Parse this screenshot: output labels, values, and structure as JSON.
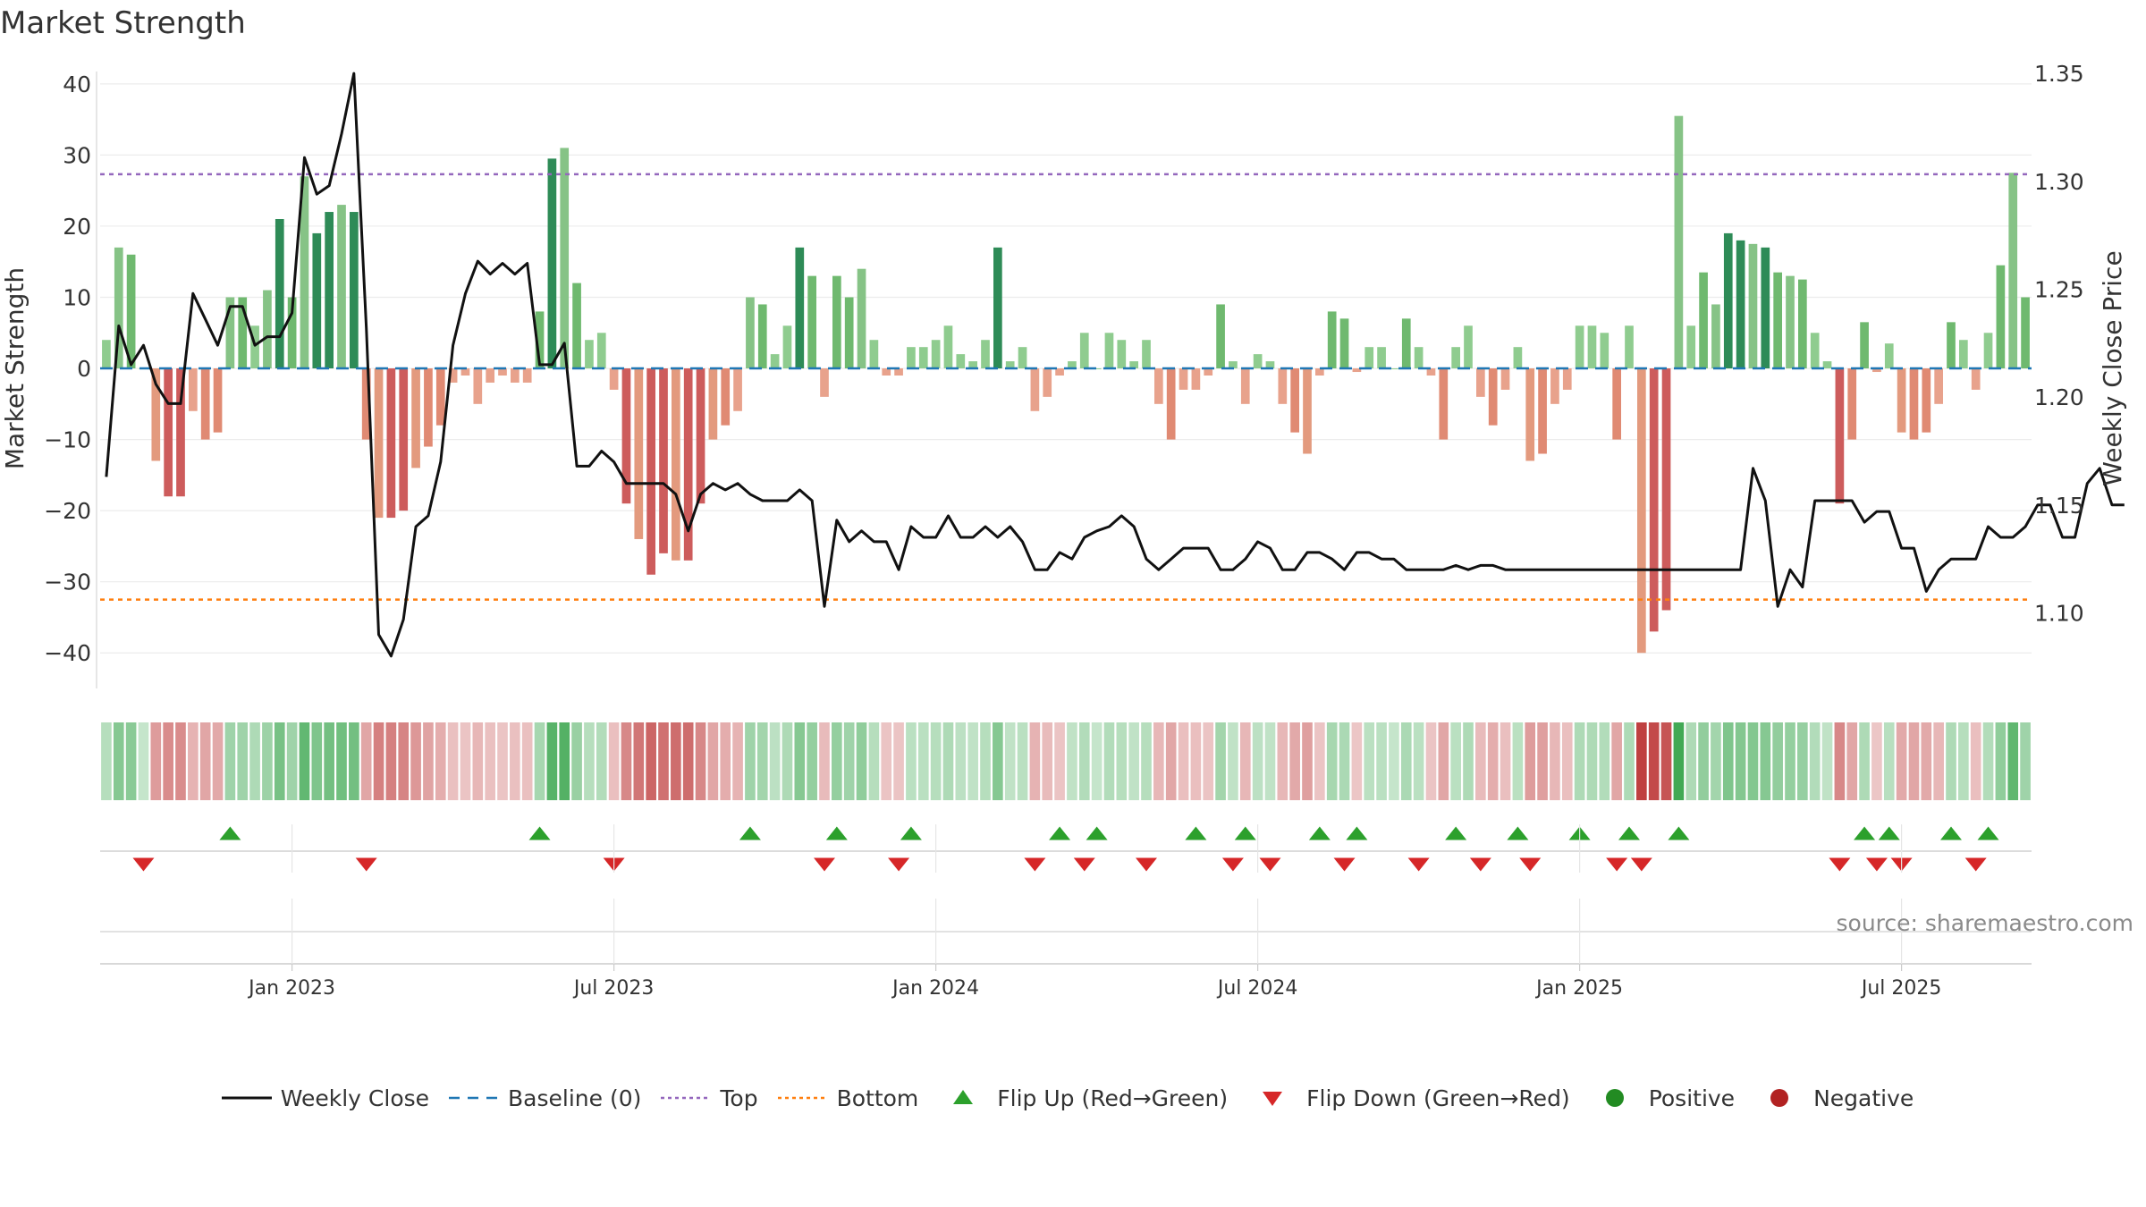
{
  "chart_data": {
    "type": "bar",
    "title": "Market Strength",
    "ylabel": "Market Strength",
    "y2label": "Weekly Close Price",
    "ylim": [
      -45,
      43
    ],
    "y2lim": [
      1.065,
      1.355
    ],
    "yticks": [
      40,
      30,
      20,
      10,
      0,
      -10,
      -20,
      -30,
      -40
    ],
    "y2ticks": [
      "1.35",
      "1.30",
      "1.25",
      "1.20",
      "1.15",
      "1.10"
    ],
    "xticks": [
      "Jan 2023",
      "Jul 2023",
      "Jan 2024",
      "Jul 2024",
      "Jan 2025",
      "Jul 2025"
    ],
    "xtick_weeks": [
      15,
      41,
      67,
      93,
      119,
      145
    ],
    "reference_lines": {
      "top": 27.3,
      "bottom": -32.5,
      "baseline": 0
    },
    "strength": [
      4,
      17,
      16,
      0,
      -13,
      -18,
      -18,
      -6,
      -10,
      -9,
      10,
      10,
      6,
      11,
      21,
      10,
      27,
      19,
      22,
      23,
      22,
      -10,
      -21,
      -21,
      -20,
      -14,
      -11,
      -8,
      -2,
      -1,
      -5,
      -2,
      -1,
      -2,
      -2,
      8,
      29.5,
      31,
      12,
      4,
      5,
      -3,
      -19,
      -24,
      -29,
      -26,
      -27,
      -27,
      -19,
      -10,
      -8,
      -6,
      10,
      9,
      2,
      6,
      17,
      13,
      -4,
      13,
      10,
      14,
      4,
      -1,
      -1,
      3,
      3,
      4,
      6,
      2,
      1,
      4,
      17,
      1,
      3,
      -6,
      -4,
      -1,
      1,
      5,
      0,
      5,
      4,
      1,
      4,
      -5,
      -10,
      -3,
      -3,
      -1,
      9,
      1,
      -5,
      2,
      1,
      -5,
      -9,
      -12,
      -1,
      8,
      7,
      -0.5,
      3,
      3,
      0,
      7,
      3,
      -1,
      -10,
      3,
      6,
      -4,
      -8,
      -3,
      3,
      -13,
      -12,
      -5,
      -3,
      6,
      6,
      5,
      -10,
      6,
      -40,
      -37,
      -34,
      35.5,
      6,
      13.5,
      9,
      19,
      18,
      17.5,
      17,
      13.5,
      13,
      12.5,
      5,
      1,
      -19,
      -10,
      6.5,
      -0.5,
      3.5,
      -9,
      -10,
      -9,
      -5,
      6.5,
      4,
      -3,
      5,
      14.5,
      27.5,
      10
    ],
    "close": [
      1.163,
      1.233,
      1.215,
      1.224,
      1.206,
      1.197,
      1.197,
      1.248,
      1.236,
      1.224,
      1.242,
      1.242,
      1.224,
      1.228,
      1.228,
      1.239,
      1.311,
      1.294,
      1.298,
      1.322,
      1.35,
      1.232,
      1.09,
      1.08,
      1.097,
      1.14,
      1.145,
      1.17,
      1.224,
      1.248,
      1.263,
      1.257,
      1.262,
      1.257,
      1.262,
      1.215,
      1.215,
      1.225,
      1.168,
      1.168,
      1.175,
      1.17,
      1.16,
      1.16,
      1.16,
      1.16,
      1.155,
      1.138,
      1.155,
      1.16,
      1.157,
      1.16,
      1.155,
      1.152,
      1.152,
      1.152,
      1.157,
      1.152,
      1.103,
      1.143,
      1.133,
      1.138,
      1.133,
      1.133,
      1.12,
      1.14,
      1.135,
      1.135,
      1.145,
      1.135,
      1.135,
      1.14,
      1.135,
      1.14,
      1.133,
      1.12,
      1.12,
      1.128,
      1.125,
      1.135,
      1.138,
      1.14,
      1.145,
      1.14,
      1.125,
      1.12,
      1.125,
      1.13,
      1.13,
      1.13,
      1.12,
      1.12,
      1.125,
      1.133,
      1.13,
      1.12,
      1.12,
      1.128,
      1.128,
      1.125,
      1.12,
      1.128,
      1.128,
      1.125,
      1.125,
      1.12,
      1.12,
      1.12,
      1.12,
      1.122,
      1.12,
      1.122,
      1.122,
      1.12,
      1.12,
      1.12,
      1.12,
      1.12,
      1.12,
      1.12,
      1.12,
      1.12,
      1.12,
      1.12,
      1.12,
      1.12,
      1.12,
      1.12,
      1.12,
      1.12,
      1.12,
      1.12,
      1.12,
      1.167,
      1.152,
      1.103,
      1.12,
      1.112,
      1.152,
      1.152,
      1.152,
      1.152,
      1.142,
      1.147,
      1.147,
      1.13,
      1.13,
      1.11,
      1.12,
      1.125,
      1.125,
      1.125,
      1.14,
      1.135,
      1.135,
      1.14,
      1.15,
      1.15,
      1.135,
      1.135,
      1.16,
      1.167,
      1.15,
      1.15
    ],
    "flip_up_weeks": [
      10,
      35,
      52,
      59,
      65,
      77,
      80,
      88,
      92,
      98,
      101,
      109,
      114,
      119,
      123,
      127,
      142,
      144,
      149,
      152
    ],
    "flip_down_weeks": [
      3,
      21,
      41,
      58,
      64,
      75,
      79,
      84,
      91,
      94,
      100,
      106,
      111,
      115,
      122,
      124,
      140,
      143,
      145,
      151
    ],
    "series": [
      {
        "name": "Weekly Close",
        "color": "#111111"
      },
      {
        "name": "Baseline (0)",
        "color": "#1f77b4"
      },
      {
        "name": "Top",
        "color": "#9467bd"
      },
      {
        "name": "Bottom",
        "color": "#ff7f0e"
      },
      {
        "name": "Flip Up (Red→Green)",
        "color": "#2ca02c"
      },
      {
        "name": "Flip Down (Green→Red)",
        "color": "#d62728"
      },
      {
        "name": "Positive",
        "color": "#228b22"
      },
      {
        "name": "Negative",
        "color": "#b22222"
      }
    ],
    "legend_position": "bottom"
  },
  "source": "source: sharemaestro.com"
}
